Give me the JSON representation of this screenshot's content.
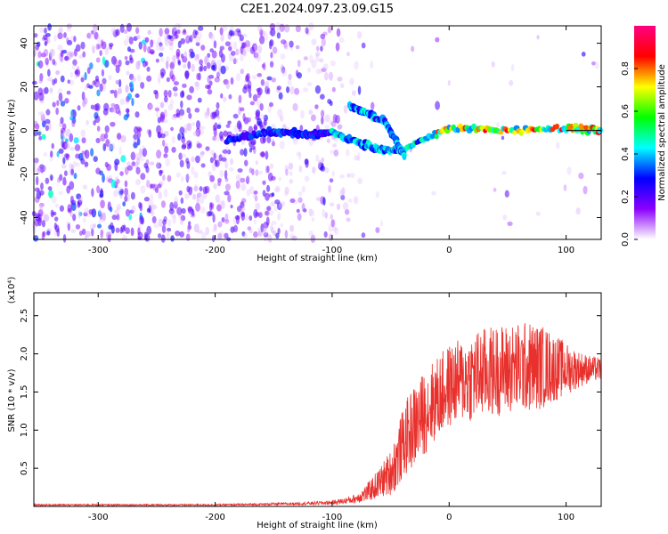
{
  "title": "C2E1.2024.097.23.09.G15",
  "colors": {
    "trace": "#e8302c",
    "frame": "#000000"
  },
  "chart_data": [
    {
      "type": "heatmap",
      "xlabel": "Height of straight line (km)",
      "ylabel": "Frequency (Hz)",
      "xlim": [
        -355,
        130
      ],
      "ylim": [
        -50,
        48
      ],
      "xticks": [
        -300,
        -200,
        -100,
        0,
        100
      ],
      "xtick_labels": [
        "-300",
        "-200",
        "-100",
        "0",
        "100"
      ],
      "yticks": [
        -40,
        -20,
        0,
        20,
        40
      ],
      "ytick_labels": [
        "-40",
        "-20",
        "0",
        "20",
        "40"
      ],
      "colorbar": {
        "label": "Normalized spectral amplitude",
        "range": [
          0,
          1
        ],
        "ticks": [
          0.0,
          0.2,
          0.4,
          0.6,
          0.8
        ],
        "tick_labels": [
          "0.0",
          "0.2",
          "0.4",
          "0.6",
          "0.8"
        ],
        "colormap": [
          "#ffffff",
          "#8b00ff",
          "#0000ff",
          "#00ffff",
          "#00ff00",
          "#ffff00",
          "#ff0000",
          "#ff0080"
        ]
      },
      "ridges": [
        {
          "x": [
            -190,
            -160,
            -140,
            -120,
            -100,
            -80,
            -60,
            -40,
            0,
            50,
            100,
            130
          ],
          "y": [
            -5,
            -1,
            -1,
            -2,
            -1,
            -5,
            -9,
            -9,
            1,
            0,
            1,
            0
          ]
        },
        {
          "x": [
            -85,
            -70,
            -55,
            -45,
            -38
          ],
          "y": [
            11,
            8,
            4,
            -5,
            -12
          ]
        }
      ]
    },
    {
      "type": "line",
      "xlabel": "Height of straight line (km)",
      "ylabel": "SNR (10 * v/v)",
      "y_multiplier": "(x10⁴)",
      "xlim": [
        -355,
        130
      ],
      "ylim": [
        0,
        2.8
      ],
      "xticks": [
        -300,
        -200,
        -100,
        0,
        100
      ],
      "xtick_labels": [
        "-300",
        "-200",
        "-100",
        "0",
        "100"
      ],
      "yticks": [
        0.5,
        1.0,
        1.5,
        2.0,
        2.5
      ],
      "ytick_labels": [
        "0.5",
        "1.0",
        "1.5",
        "2.0",
        "2.5"
      ],
      "series": [
        {
          "color": "#e8302c",
          "x": [
            -355,
            -300,
            -250,
            -200,
            -150,
            -120,
            -100,
            -90,
            -80,
            -70,
            -60,
            -50,
            -45,
            -40,
            -35,
            -30,
            -25,
            -20,
            -15,
            -10,
            -5,
            0,
            10,
            20,
            30,
            40,
            50,
            60,
            70,
            80,
            90,
            100,
            110,
            120,
            130
          ],
          "y": [
            0.02,
            0.02,
            0.02,
            0.02,
            0.03,
            0.04,
            0.05,
            0.07,
            0.1,
            0.18,
            0.3,
            0.45,
            0.6,
            0.8,
            0.95,
            1.05,
            1.15,
            1.25,
            1.35,
            1.42,
            1.5,
            1.58,
            1.65,
            1.7,
            1.75,
            1.78,
            1.8,
            1.82,
            1.83,
            1.83,
            1.82,
            1.8,
            1.8,
            1.8,
            1.8
          ],
          "noise": [
            0.01,
            0.01,
            0.01,
            0.01,
            0.015,
            0.02,
            0.03,
            0.04,
            0.06,
            0.12,
            0.2,
            0.3,
            0.4,
            0.45,
            0.5,
            0.55,
            0.55,
            0.55,
            0.55,
            0.55,
            0.55,
            0.55,
            0.55,
            0.6,
            0.6,
            0.6,
            0.6,
            0.6,
            0.6,
            0.55,
            0.45,
            0.35,
            0.25,
            0.18,
            0.15
          ]
        }
      ]
    }
  ]
}
